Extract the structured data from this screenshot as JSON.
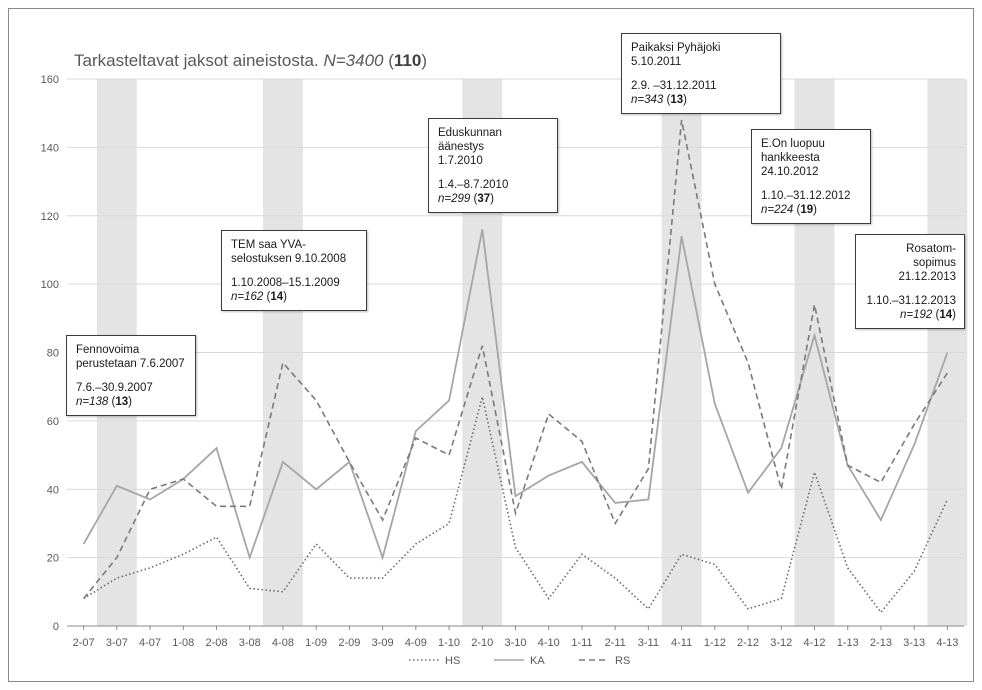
{
  "title": {
    "main": "Tarkasteltavat jaksot aineistosta. ",
    "n_label": "N=3400",
    "count": "110"
  },
  "annotations": [
    {
      "lines": [
        "Fennovoima",
        "perustetaan 7.6.2007"
      ],
      "period": "7.6.–30.9.2007",
      "n": "n=138",
      "count": "13"
    },
    {
      "lines": [
        "TEM saa YVA-",
        "selostuksen 9.10.2008"
      ],
      "period": "1.10.2008–15.1.2009",
      "n": "n=162",
      "count": "14"
    },
    {
      "lines": [
        "Eduskunnan äänestys",
        "1.7.2010"
      ],
      "period": "1.4.–8.7.2010",
      "n": "n=299",
      "count": "37"
    },
    {
      "lines": [
        "Paikaksi Pyhäjoki 5.10.2011"
      ],
      "period": "2.9. –31.12.2011",
      "n": "n=343",
      "count": "13"
    },
    {
      "lines": [
        "E.On luopuu",
        "hankkeesta",
        "24.10.2012"
      ],
      "period": "1.10.–31.12.2012",
      "n": "n=224",
      "count": "19"
    },
    {
      "lines": [
        "Rosatom-sopimus",
        "21.12.2013"
      ],
      "period": "1.10.–31.12.2013",
      "n": "n=192",
      "count": "14"
    }
  ],
  "chart_data": {
    "type": "line",
    "categories": [
      "2-07",
      "3-07",
      "4-07",
      "1-08",
      "2-08",
      "3-08",
      "4-08",
      "1-09",
      "2-09",
      "3-09",
      "4-09",
      "1-10",
      "2-10",
      "3-10",
      "4-10",
      "1-11",
      "2-11",
      "3-11",
      "4-11",
      "1-12",
      "2-12",
      "3-12",
      "4-12",
      "1-13",
      "2-13",
      "3-13",
      "4-13"
    ],
    "ylim": [
      0,
      160
    ],
    "yticks": [
      0,
      20,
      40,
      60,
      80,
      100,
      120,
      140,
      160
    ],
    "grid": true,
    "legend": "bottom",
    "highlighted_categories": [
      "3-07",
      "4-08",
      "2-10",
      "4-11",
      "4-12",
      "4-13"
    ],
    "series": [
      {
        "name": "HS",
        "style": "dotted",
        "color": "#6b6b6b",
        "values": [
          8,
          14,
          17,
          21,
          26,
          11,
          10,
          24,
          14,
          14,
          24,
          30,
          67,
          23,
          8,
          21,
          14,
          5,
          21,
          18,
          5,
          8,
          45,
          17,
          4,
          16,
          37
        ]
      },
      {
        "name": "KA",
        "style": "solid",
        "color": "#a6a6a6",
        "values": [
          24,
          41,
          37,
          43,
          52,
          20,
          48,
          40,
          48,
          20,
          57,
          66,
          116,
          38,
          44,
          48,
          36,
          37,
          114,
          65,
          39,
          52,
          85,
          47,
          31,
          53,
          80
        ]
      },
      {
        "name": "RS",
        "style": "dashed",
        "color": "#7a7a7a",
        "values": [
          8,
          20,
          40,
          43,
          35,
          35,
          77,
          66,
          48,
          31,
          55,
          50,
          82,
          33,
          62,
          54,
          30,
          46,
          148,
          100,
          77,
          40,
          94,
          47,
          42,
          59,
          74
        ]
      }
    ]
  },
  "colors": {
    "band": "#e4e4e4",
    "grid": "#d9d9d9",
    "axis": "#8a8a8a"
  }
}
